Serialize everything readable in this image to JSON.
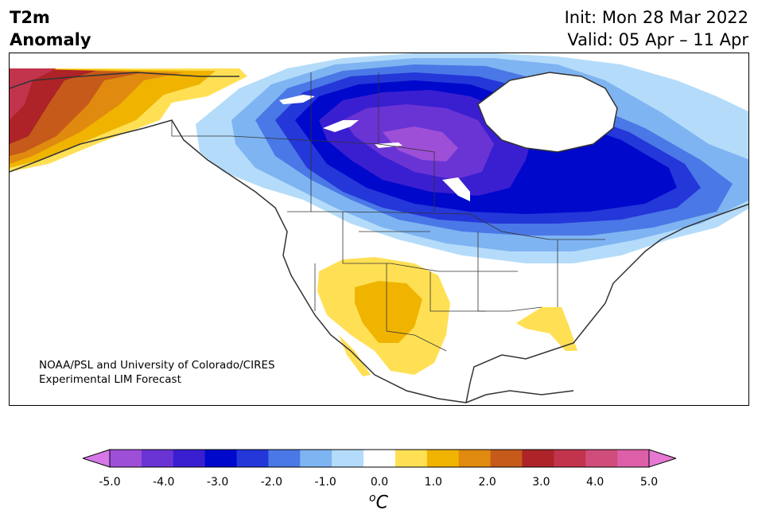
{
  "header": {
    "variable_line1": "T2m",
    "variable_line2": "Anomaly",
    "init": "Init: Mon 28 Mar 2022",
    "valid": "Valid: 05 Apr – 11 Apr"
  },
  "credit": {
    "line1": "NOAA/PSL and University of Colorado/CIRES",
    "line2": "Experimental LIM Forecast"
  },
  "colorbar": {
    "colors": [
      "#d678e8",
      "#9e4fd8",
      "#6a34d4",
      "#3a1fd0",
      "#0008cc",
      "#2437d8",
      "#4a78e6",
      "#7fb4f2",
      "#b4dcfa",
      "#ffffff",
      "#ffe055",
      "#f0b400",
      "#e08a10",
      "#c55a1a",
      "#ad2328",
      "#c2344c",
      "#d04c7a",
      "#dc5fa8",
      "#e678d4"
    ],
    "tick_labels": [
      "-5.0",
      "-4.0",
      "-3.0",
      "-2.0",
      "-1.0",
      "0.0",
      "1.0",
      "2.0",
      "3.0",
      "4.0",
      "5.0"
    ],
    "unit_sup": "o",
    "unit": "C"
  }
}
